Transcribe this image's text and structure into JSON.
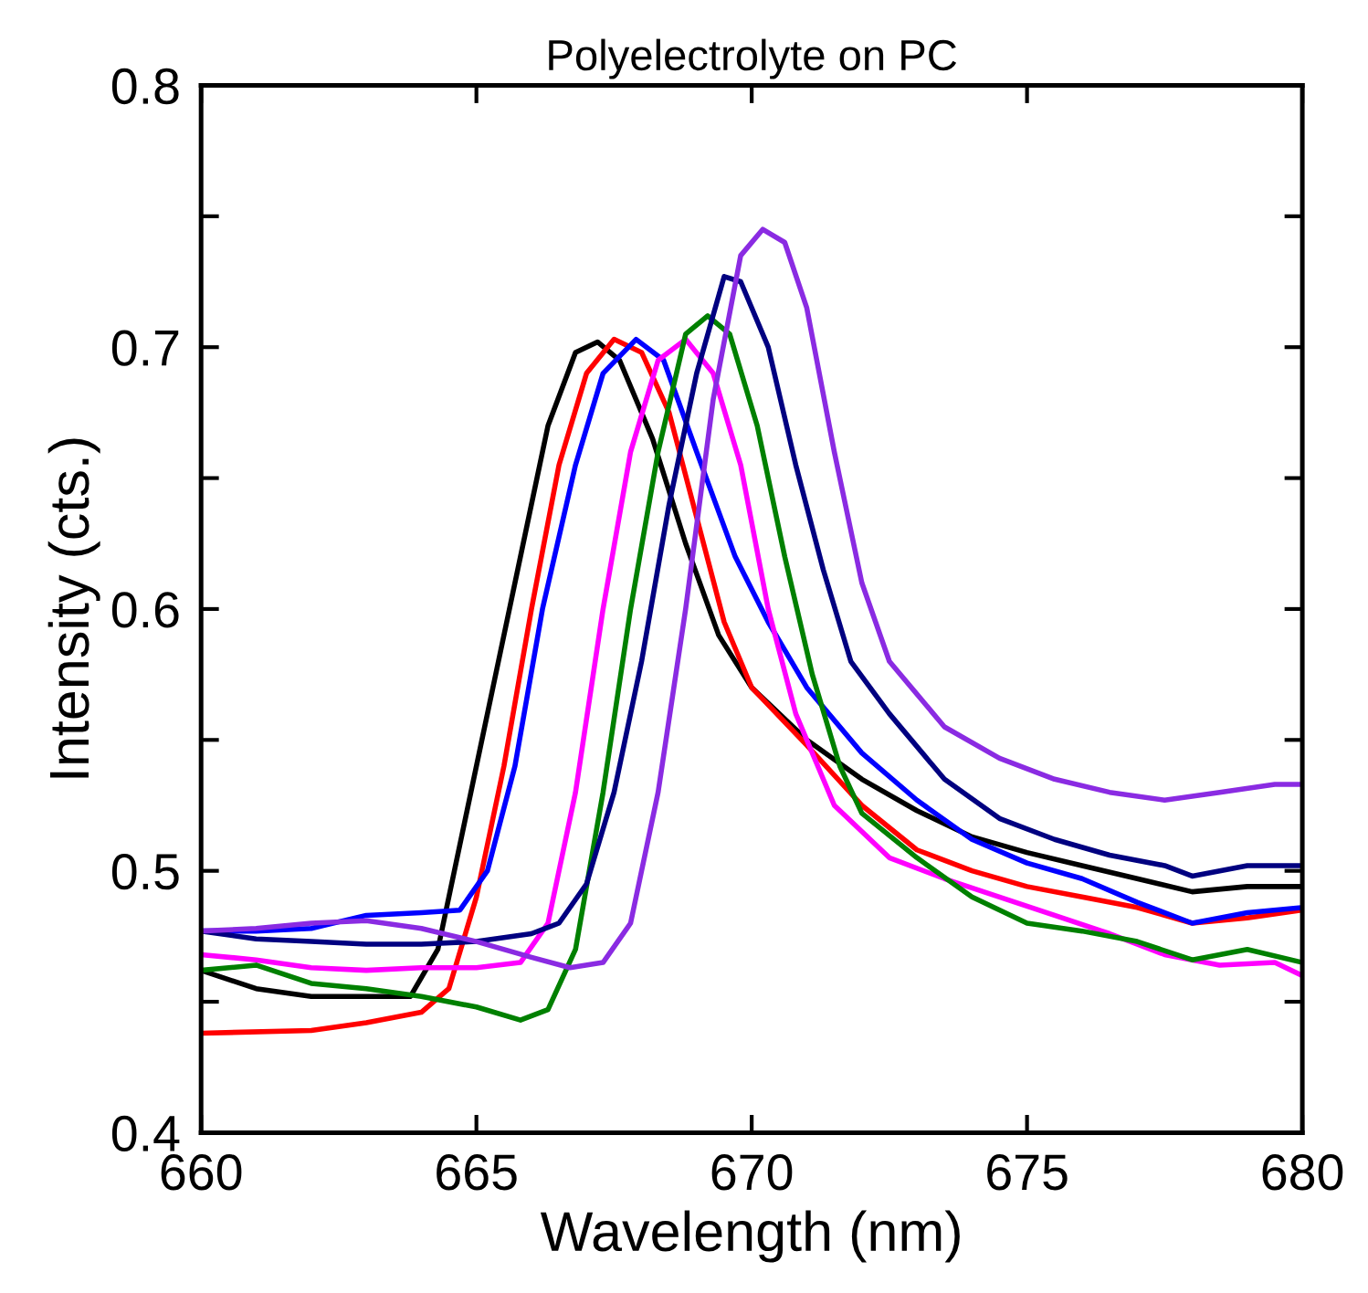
{
  "chart_data": {
    "type": "line",
    "title": "Polyelectrolyte on PC",
    "xlabel": "Wavelength (nm)",
    "ylabel": "Intensity (cts.)",
    "xlim": [
      660,
      680
    ],
    "xticks": [
      660,
      665,
      670,
      675,
      680
    ],
    "ylim": [
      0.4,
      0.8
    ],
    "yticks": [
      0.4,
      {
        "value": 0.45,
        "label": null
      },
      0.5,
      {
        "value": 0.55,
        "label": null
      },
      0.6,
      {
        "value": 0.65,
        "label": null
      },
      0.7,
      {
        "value": 0.75,
        "label": null
      },
      0.8
    ],
    "grid": false,
    "legend": false,
    "marker": "none",
    "line_style": "solid",
    "series": [
      {
        "color": "#000000",
        "x": [
          660,
          661,
          662,
          663,
          663.8,
          664.3,
          664.8,
          665.3,
          665.8,
          666.3,
          666.8,
          667.2,
          667.6,
          668.2,
          668.8,
          669.4,
          670,
          671,
          672,
          673,
          674,
          675,
          676,
          677,
          678,
          679,
          680
        ],
        "values": [
          0.462,
          0.455,
          0.452,
          0.452,
          0.452,
          0.47,
          0.52,
          0.57,
          0.62,
          0.67,
          0.698,
          0.702,
          0.695,
          0.665,
          0.625,
          0.59,
          0.57,
          0.55,
          0.535,
          0.523,
          0.513,
          0.507,
          0.502,
          0.497,
          0.492,
          0.494,
          0.494
        ]
      },
      {
        "color": "#ff0000",
        "x": [
          660,
          662,
          663,
          664,
          664.5,
          665,
          665.5,
          666,
          666.5,
          667,
          667.5,
          668,
          668.5,
          669,
          669.5,
          670,
          671,
          672,
          673,
          674,
          675,
          676,
          677,
          678,
          679,
          680
        ],
        "values": [
          0.438,
          0.439,
          0.442,
          0.446,
          0.455,
          0.49,
          0.54,
          0.6,
          0.655,
          0.69,
          0.703,
          0.698,
          0.675,
          0.635,
          0.595,
          0.57,
          0.548,
          0.525,
          0.508,
          0.5,
          0.494,
          0.49,
          0.486,
          0.48,
          0.482,
          0.485
        ]
      },
      {
        "color": "#0000ff",
        "x": [
          660,
          661,
          662,
          663,
          664,
          664.7,
          665.2,
          665.7,
          666.2,
          666.8,
          667.3,
          667.9,
          668.4,
          669,
          669.7,
          670.3,
          671,
          672,
          673,
          674,
          675,
          676,
          677,
          678,
          679,
          680
        ],
        "values": [
          0.477,
          0.477,
          0.478,
          0.483,
          0.484,
          0.485,
          0.5,
          0.54,
          0.6,
          0.655,
          0.69,
          0.703,
          0.695,
          0.66,
          0.62,
          0.595,
          0.57,
          0.545,
          0.527,
          0.512,
          0.503,
          0.497,
          0.488,
          0.48,
          0.484,
          0.486
        ]
      },
      {
        "color": "#ff00ff",
        "x": [
          660,
          661,
          662,
          663,
          664,
          665,
          665.8,
          666.3,
          666.8,
          667.3,
          667.8,
          668.3,
          668.8,
          669.3,
          669.8,
          670.3,
          670.8,
          671.5,
          672.5,
          673.5,
          674.5,
          675.5,
          676.5,
          677.5,
          678.5,
          679.5,
          680
        ],
        "values": [
          0.468,
          0.466,
          0.463,
          0.462,
          0.463,
          0.463,
          0.465,
          0.48,
          0.53,
          0.6,
          0.66,
          0.695,
          0.703,
          0.69,
          0.655,
          0.6,
          0.56,
          0.525,
          0.505,
          0.497,
          0.49,
          0.483,
          0.476,
          0.468,
          0.464,
          0.465,
          0.46
        ]
      },
      {
        "color": "#008000",
        "x": [
          660,
          661,
          662,
          663,
          664,
          665,
          665.8,
          666.3,
          666.8,
          667.3,
          667.8,
          668.3,
          668.8,
          669.2,
          669.6,
          670.1,
          670.6,
          671.1,
          671.6,
          672,
          673,
          674,
          675,
          676,
          677,
          678,
          679,
          680
        ],
        "values": [
          0.462,
          0.464,
          0.457,
          0.455,
          0.452,
          0.448,
          0.443,
          0.447,
          0.47,
          0.53,
          0.6,
          0.66,
          0.705,
          0.712,
          0.705,
          0.67,
          0.62,
          0.575,
          0.54,
          0.522,
          0.505,
          0.49,
          0.48,
          0.477,
          0.473,
          0.466,
          0.47,
          0.465
        ]
      },
      {
        "color": "#000080",
        "x": [
          660,
          661,
          662,
          663,
          664,
          665,
          666,
          666.5,
          667,
          667.5,
          668,
          668.5,
          669,
          669.5,
          669.8,
          670.3,
          670.8,
          671.3,
          671.8,
          672.5,
          673.5,
          674.5,
          675.5,
          676.5,
          677.5,
          678,
          679,
          680
        ],
        "values": [
          0.477,
          0.474,
          0.473,
          0.472,
          0.472,
          0.473,
          0.476,
          0.48,
          0.495,
          0.53,
          0.58,
          0.64,
          0.69,
          0.727,
          0.725,
          0.7,
          0.655,
          0.615,
          0.58,
          0.56,
          0.535,
          0.52,
          0.512,
          0.506,
          0.502,
          0.498,
          0.502,
          0.502
        ]
      },
      {
        "color": "#8a2be2",
        "x": [
          660,
          661,
          662,
          663,
          664,
          665,
          666,
          666.7,
          667.3,
          667.8,
          668.3,
          668.8,
          669.3,
          669.8,
          670.2,
          670.6,
          671,
          671.5,
          672,
          672.5,
          673.5,
          674.5,
          675.5,
          676.5,
          677.5,
          678.5,
          679.5,
          680
        ],
        "values": [
          0.477,
          0.478,
          0.48,
          0.481,
          0.478,
          0.473,
          0.467,
          0.463,
          0.465,
          0.48,
          0.53,
          0.6,
          0.68,
          0.735,
          0.745,
          0.74,
          0.715,
          0.66,
          0.61,
          0.58,
          0.555,
          0.543,
          0.535,
          0.53,
          0.527,
          0.53,
          0.533,
          0.533
        ]
      }
    ]
  }
}
